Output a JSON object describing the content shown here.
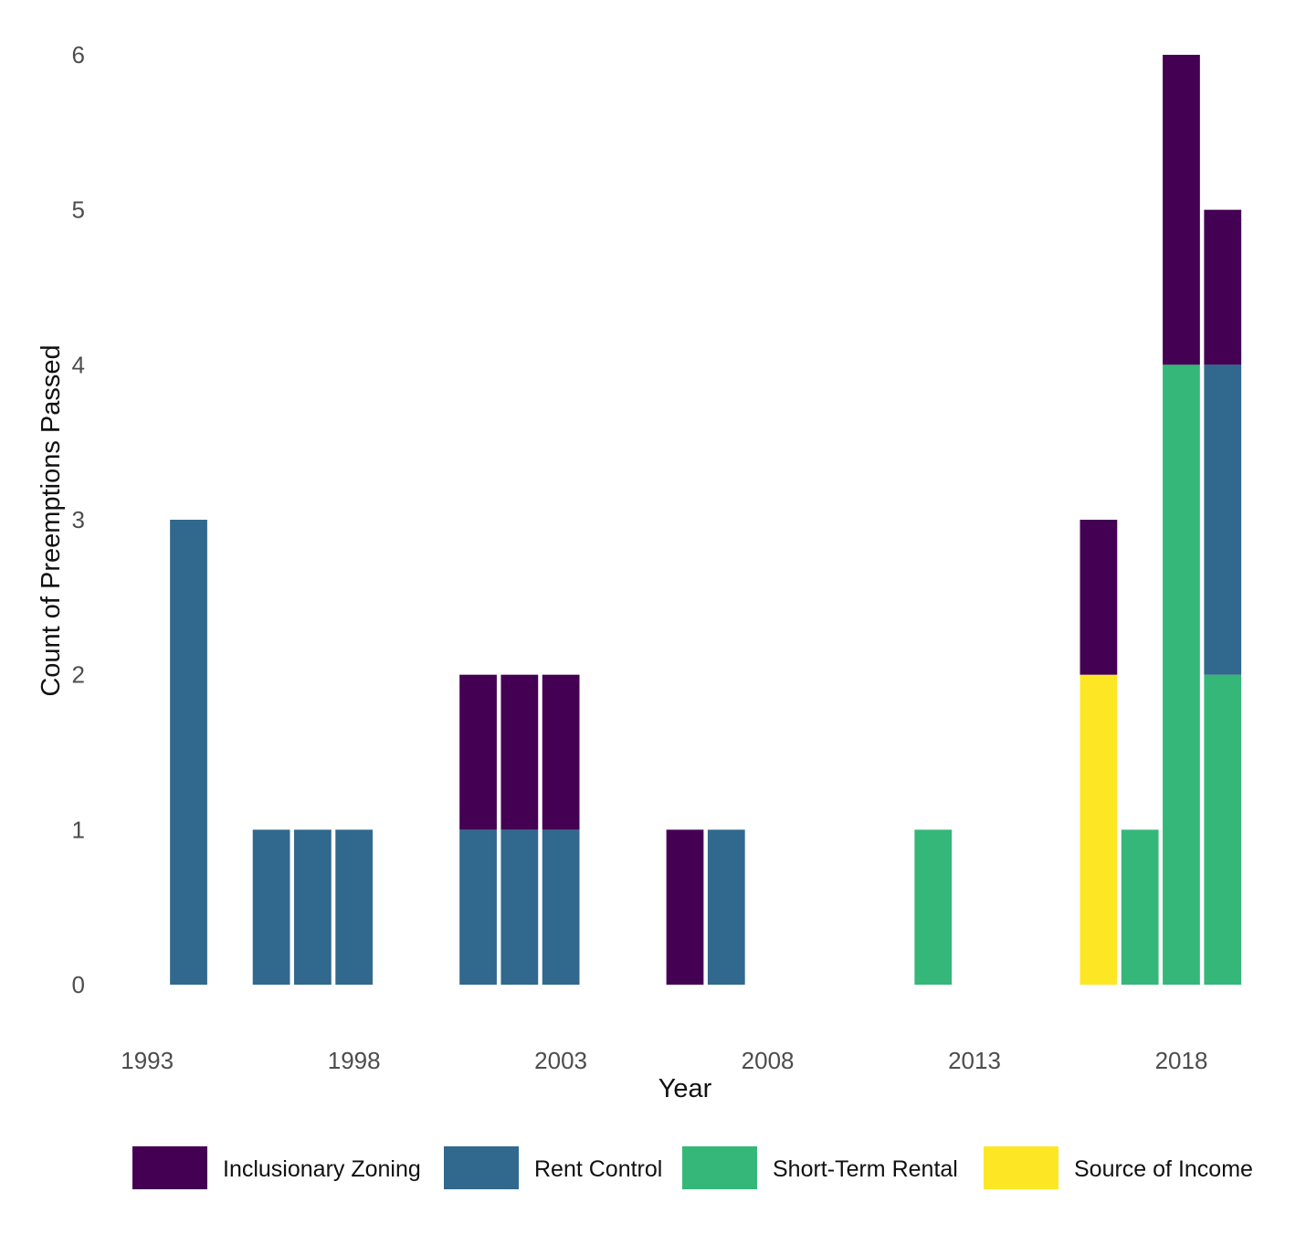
{
  "chart_data": {
    "type": "bar",
    "stacked": true,
    "title": "",
    "xlabel": "Year",
    "ylabel": "Count of Preemptions Passed",
    "x_ticks": [
      1993,
      1998,
      2003,
      2008,
      2013,
      2018
    ],
    "y_ticks": [
      0,
      1,
      2,
      3,
      4,
      5,
      6
    ],
    "ylim": [
      0,
      6
    ],
    "xlim": [
      1992.2,
      2019.8
    ],
    "grid": false,
    "legend_position": "bottom",
    "categories": [
      1994,
      1996,
      1997,
      1998,
      2001,
      2002,
      2003,
      2006,
      2007,
      2012,
      2016,
      2017,
      2018,
      2019
    ],
    "series": [
      {
        "name": "Source of Income",
        "color": "#fde725",
        "values": [
          0,
          0,
          0,
          0,
          0,
          0,
          0,
          0,
          0,
          0,
          2,
          0,
          0,
          0
        ]
      },
      {
        "name": "Short-Term Rental",
        "color": "#35b779",
        "values": [
          0,
          0,
          0,
          0,
          0,
          0,
          0,
          0,
          0,
          1,
          0,
          1,
          4,
          2
        ]
      },
      {
        "name": "Rent Control",
        "color": "#31688e",
        "values": [
          3,
          1,
          1,
          1,
          1,
          1,
          1,
          0,
          1,
          0,
          0,
          0,
          0,
          2
        ]
      },
      {
        "name": "Inclusionary Zoning",
        "color": "#440154",
        "values": [
          0,
          0,
          0,
          0,
          1,
          1,
          1,
          1,
          0,
          0,
          1,
          0,
          2,
          1
        ]
      }
    ],
    "legend": [
      {
        "label": "Inclusionary Zoning",
        "color": "#440154"
      },
      {
        "label": "Rent Control",
        "color": "#31688e"
      },
      {
        "label": "Short-Term Rental",
        "color": "#35b779"
      },
      {
        "label": "Source of Income",
        "color": "#fde725"
      }
    ]
  }
}
